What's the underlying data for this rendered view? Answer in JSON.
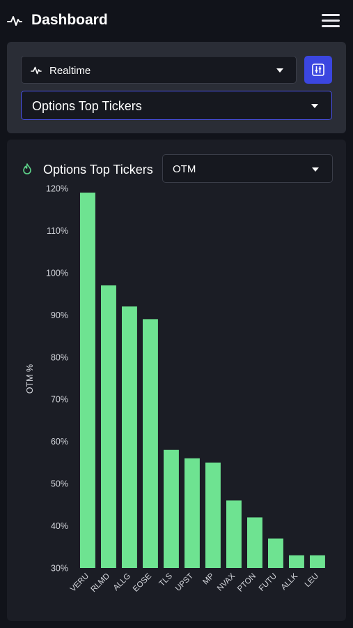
{
  "header": {
    "title": "Dashboard",
    "pulse_icon": "pulse-icon",
    "menu_icon": "hamburger-menu-icon"
  },
  "controls": {
    "mode_select": {
      "value": "Realtime",
      "icon": "pulse-icon"
    },
    "filter_button": {
      "icon": "sliders-icon",
      "color": "#3b46e0"
    },
    "view_select": {
      "value": "Options Top Tickers"
    }
  },
  "chart_card": {
    "icon": "flame-icon",
    "heading": "Options Top Tickers",
    "metric_select": {
      "value": "OTM"
    }
  },
  "chart_data": {
    "type": "bar",
    "title": "",
    "xlabel": "",
    "ylabel": "OTM %",
    "ylim": [
      30,
      120
    ],
    "yticks": [
      30,
      40,
      50,
      60,
      70,
      80,
      90,
      100,
      110,
      120
    ],
    "ytick_format": "%",
    "categories": [
      "VERU",
      "RLMD",
      "ALLG",
      "EOSE",
      "TLS",
      "UPST",
      "MP",
      "NVAX",
      "PTON",
      "FUTU",
      "ALLK",
      "LEU"
    ],
    "values": [
      119,
      97,
      92,
      89,
      58,
      56,
      55,
      46,
      42,
      37,
      33,
      33
    ],
    "bar_color": "#6ee391",
    "grid": false,
    "legend": "none"
  }
}
